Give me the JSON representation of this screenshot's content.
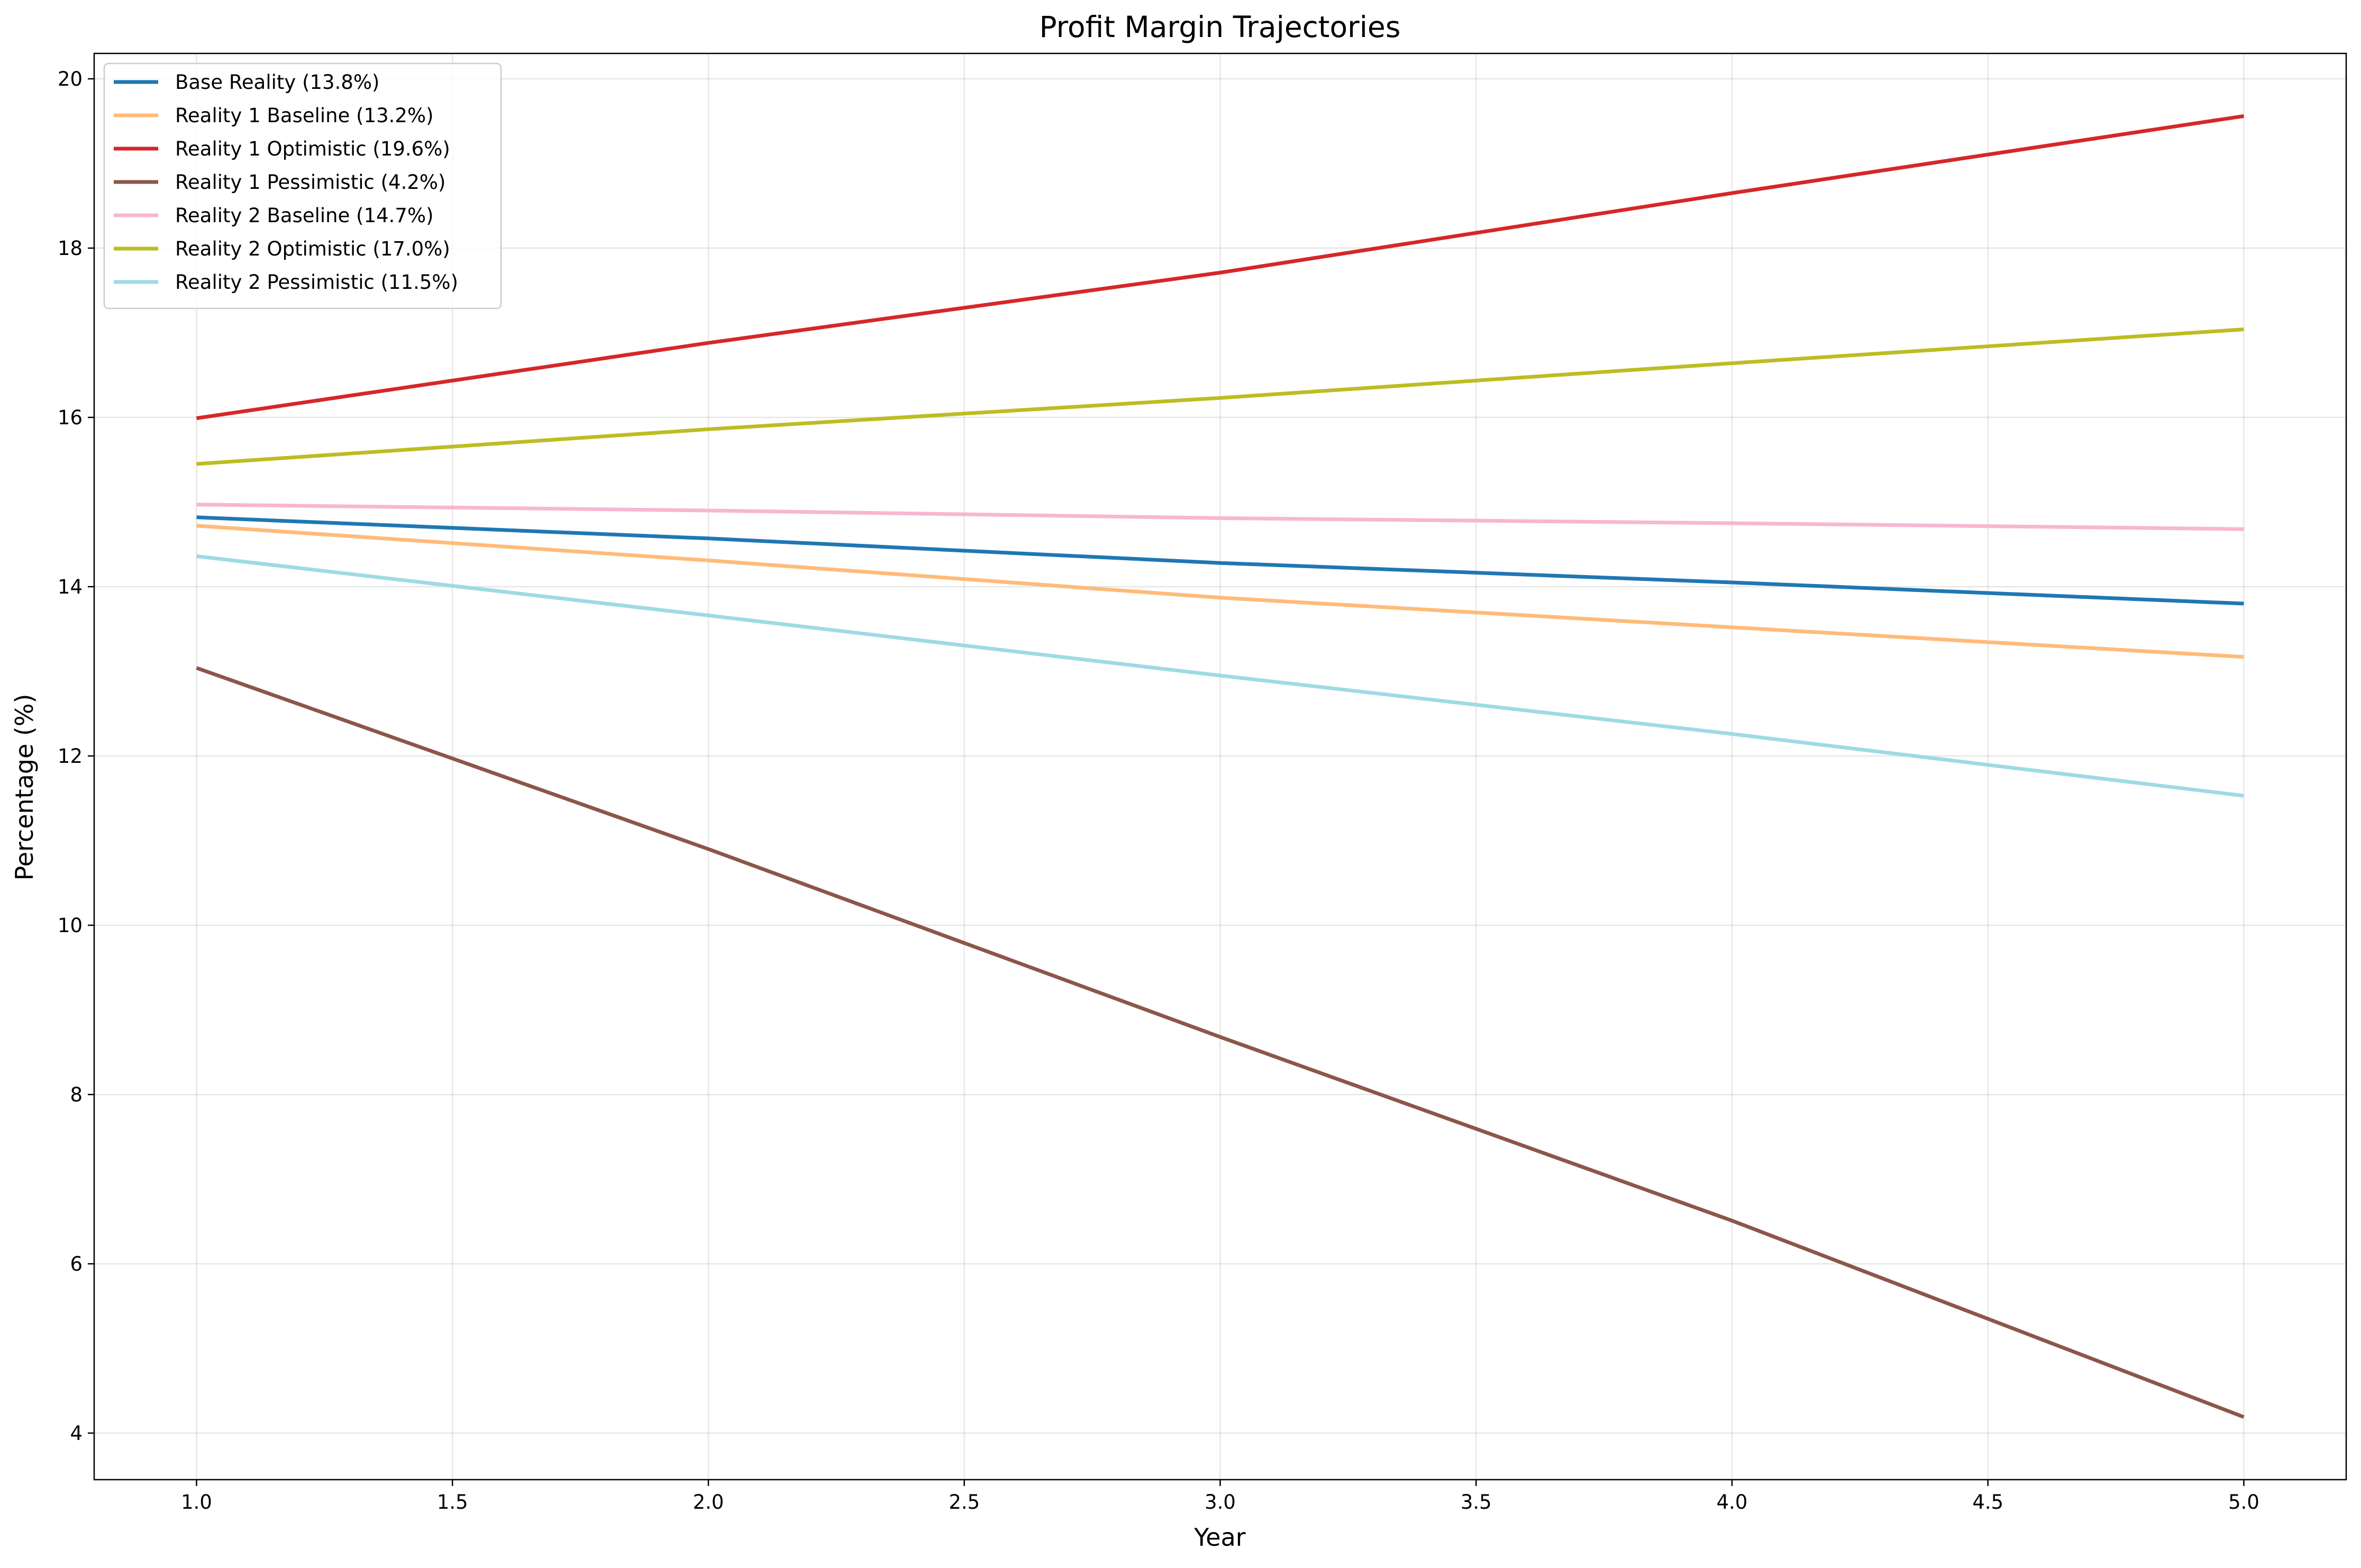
{
  "chart_data": {
    "type": "line",
    "title": "Profit Margin Trajectories",
    "xlabel": "Year",
    "ylabel": "Percentage (%)",
    "xlim": [
      0.8,
      5.2
    ],
    "ylim": [
      3.45,
      20.3
    ],
    "x_ticks": [
      "1.0",
      "1.5",
      "2.0",
      "2.5",
      "3.0",
      "3.5",
      "4.0",
      "4.5",
      "5.0"
    ],
    "y_ticks": [
      "4",
      "6",
      "8",
      "10",
      "12",
      "14",
      "16",
      "18",
      "20"
    ],
    "grid": true,
    "legend_position": "upper-left",
    "x": [
      1,
      2,
      3,
      4,
      5
    ],
    "series": [
      {
        "name": "Base Reality (13.8%)",
        "color": "#1f77b4",
        "values": [
          14.82,
          14.57,
          14.28,
          14.05,
          13.8
        ]
      },
      {
        "name": "Reality 1 Baseline (13.2%)",
        "color": "#ffbb78",
        "values": [
          14.72,
          14.31,
          13.87,
          13.52,
          13.17
        ]
      },
      {
        "name": "Reality 1 Optimistic (19.6%)",
        "color": "#d62728",
        "values": [
          15.99,
          16.88,
          17.71,
          18.65,
          19.56
        ]
      },
      {
        "name": "Reality 1 Pessimistic (4.2%)",
        "color": "#8c564b",
        "values": [
          13.04,
          10.9,
          8.68,
          6.51,
          4.19
        ]
      },
      {
        "name": "Reality 2 Baseline (14.7%)",
        "color": "#f7b6d2",
        "values": [
          14.97,
          14.9,
          14.81,
          14.75,
          14.68
        ]
      },
      {
        "name": "Reality 2 Optimistic (17.0%)",
        "color": "#bcbd22",
        "values": [
          15.45,
          15.86,
          16.23,
          16.64,
          17.04
        ]
      },
      {
        "name": "Reality 2 Pessimistic (11.5%)",
        "color": "#9edae5",
        "values": [
          14.36,
          13.66,
          12.95,
          12.26,
          11.53
        ]
      }
    ]
  }
}
